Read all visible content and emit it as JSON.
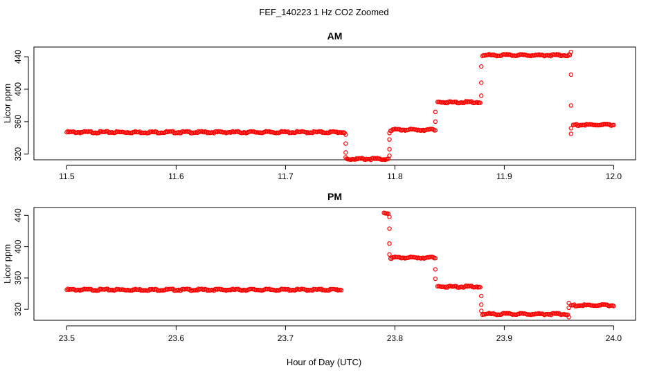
{
  "figure": {
    "title": "FEF_140223  1 Hz CO2 Zoomed",
    "xlabel": "Hour of Day (UTC)"
  },
  "colors": {
    "points": "#ff0000",
    "axis": "#000000"
  },
  "chart_data": [
    {
      "type": "scatter",
      "title": "AM",
      "xlabel": "Hour of Day (UTC)",
      "ylabel": "Licor ppm",
      "xlim": [
        11.47,
        12.02
      ],
      "ylim": [
        313,
        452
      ],
      "xticks": [
        11.5,
        11.6,
        11.7,
        11.8,
        11.9,
        12.0
      ],
      "xtick_labels": [
        "11.5",
        "11.6",
        "11.7",
        "11.8",
        "11.9",
        "12.0"
      ],
      "yticks": [
        320,
        360,
        400,
        440
      ],
      "ytick_labels": [
        "320",
        "360",
        "400",
        "440"
      ],
      "marker": "open-circle",
      "series": [
        {
          "segments": [
            {
              "x0": 11.5,
              "x1": 11.754,
              "y": 347
            },
            {
              "x0": 11.756,
              "x1": 11.794,
              "y": 314
            },
            {
              "x0": 11.796,
              "x1": 11.837,
              "y": 350
            },
            {
              "x0": 11.839,
              "x1": 11.878,
              "y": 384
            },
            {
              "x0": 11.88,
              "x1": 11.96,
              "y": 442
            },
            {
              "x0": 11.963,
              "x1": 12.0,
              "y": 356
            }
          ],
          "transitions": [
            {
              "x": 11.755,
              "y": [
                344,
                333,
                322,
                316
              ]
            },
            {
              "x": 11.795,
              "y": [
                318,
                326,
                338,
                346
              ]
            },
            {
              "x": 11.837,
              "y": [
                360,
                372
              ]
            },
            {
              "x": 11.879,
              "y": [
                392,
                408,
                428
              ]
            },
            {
              "x": 11.961,
              "y": [
                446,
                418,
                380,
                352,
                345
              ]
            }
          ]
        }
      ]
    },
    {
      "type": "scatter",
      "title": "PM",
      "xlabel": "Hour of Day (UTC)",
      "ylabel": "Licor ppm",
      "xlim": [
        23.47,
        24.02
      ],
      "ylim": [
        306,
        450
      ],
      "xticks": [
        23.5,
        23.6,
        23.7,
        23.8,
        23.9,
        24.0
      ],
      "xtick_labels": [
        "23.5",
        "23.6",
        "23.7",
        "23.8",
        "23.9",
        "24.0"
      ],
      "yticks": [
        320,
        360,
        400,
        440
      ],
      "ytick_labels": [
        "320",
        "360",
        "400",
        "440"
      ],
      "marker": "open-circle",
      "series": [
        {
          "segments": [
            {
              "x0": 23.5,
              "x1": 23.751,
              "y": 345
            },
            {
              "x0": 23.79,
              "x1": 23.794,
              "y": 443
            },
            {
              "x0": 23.796,
              "x1": 23.837,
              "y": 386
            },
            {
              "x0": 23.839,
              "x1": 23.878,
              "y": 349
            },
            {
              "x0": 23.88,
              "x1": 23.958,
              "y": 314
            },
            {
              "x0": 23.961,
              "x1": 24.0,
              "y": 325
            }
          ],
          "transitions": [
            {
              "x": 23.795,
              "y": [
                438,
                423,
                404,
                390
              ]
            },
            {
              "x": 23.837,
              "y": [
                371,
                359
              ]
            },
            {
              "x": 23.879,
              "y": [
                337,
                326,
                318
              ]
            },
            {
              "x": 23.959,
              "y": [
                310,
                322,
                328
              ]
            }
          ]
        }
      ]
    }
  ]
}
